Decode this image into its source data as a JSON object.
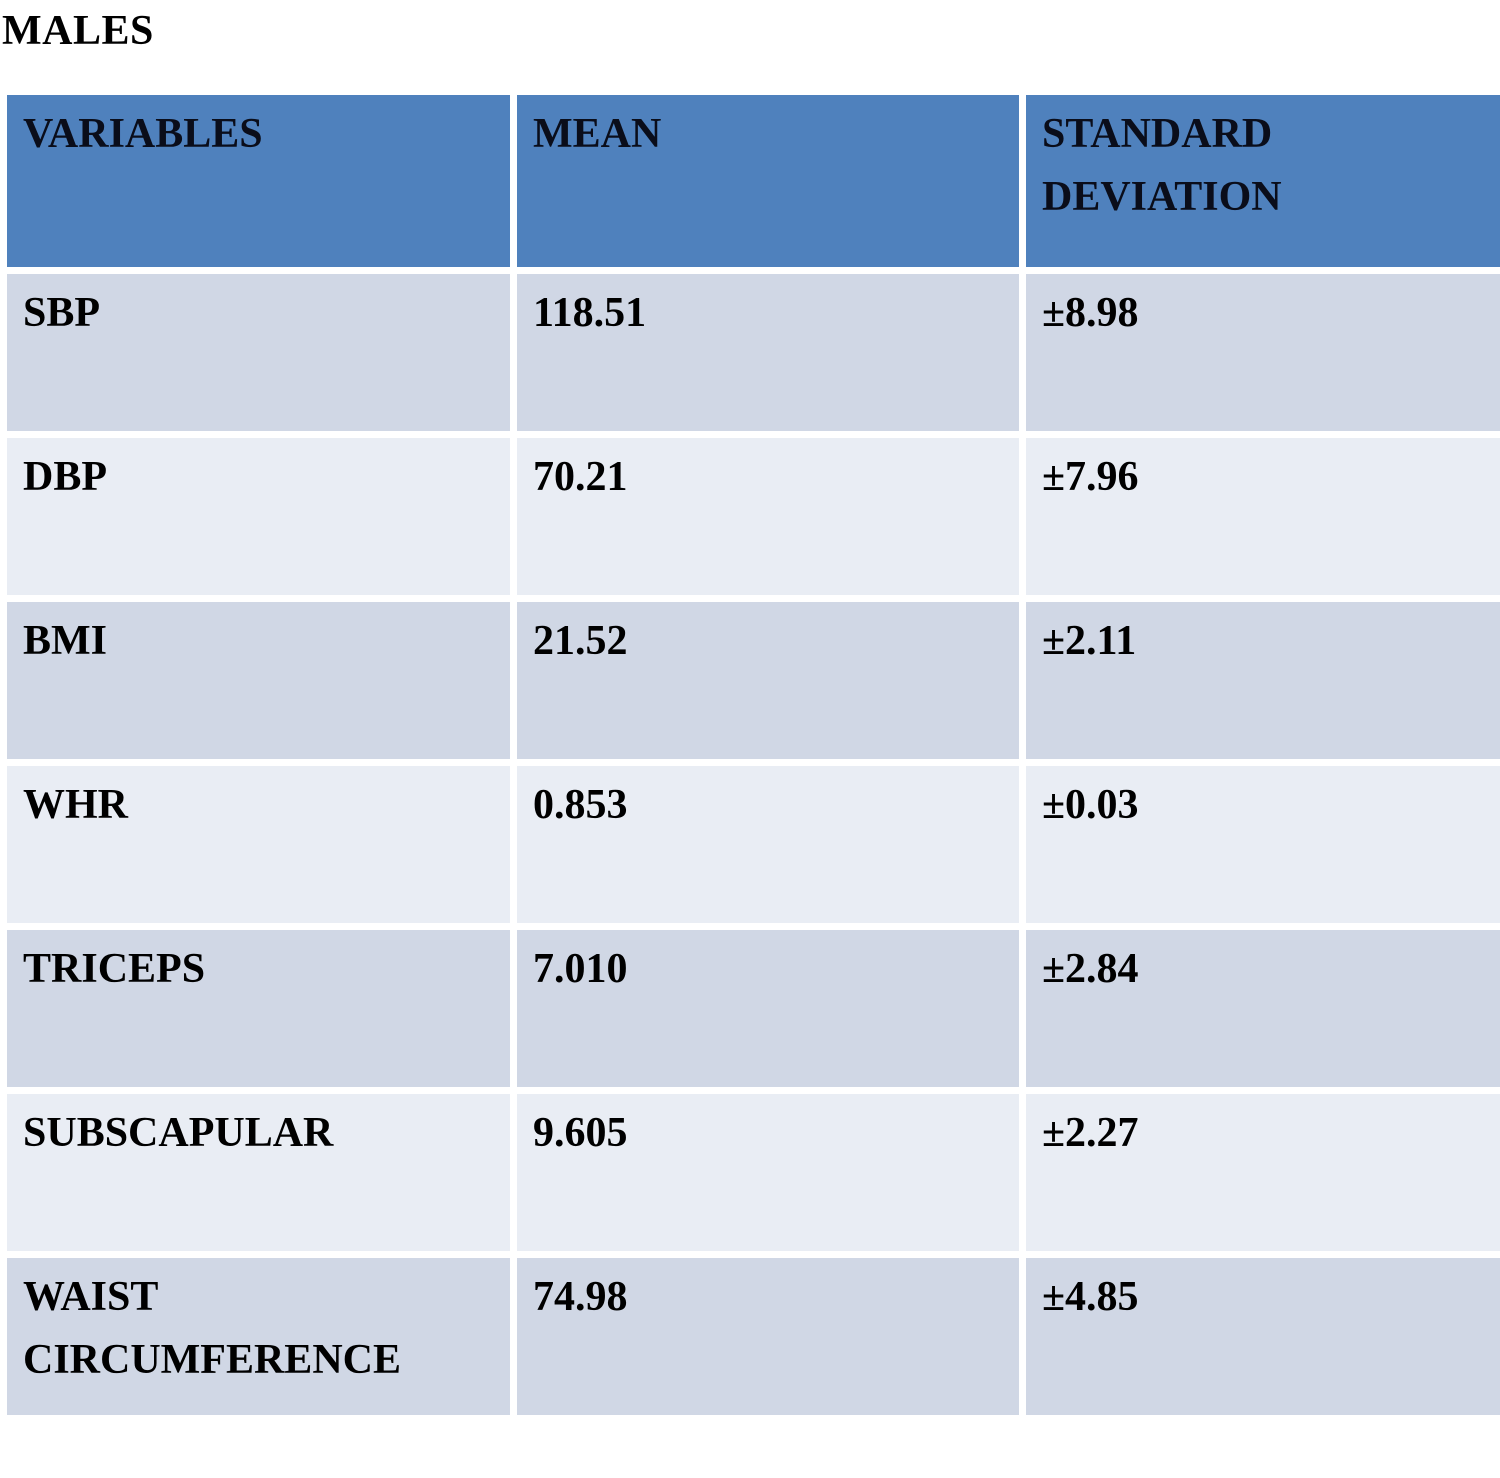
{
  "title": "MALES",
  "table": {
    "columns": [
      "VARIABLES",
      "MEAN",
      "STANDARD DEVIATION"
    ],
    "rows": [
      [
        "SBP",
        "118.51",
        "±8.98"
      ],
      [
        "DBP",
        "70.21",
        "±7.96"
      ],
      [
        "BMI",
        "21.52",
        "±2.11"
      ],
      [
        "WHR",
        "0.853",
        "±0.03"
      ],
      [
        "TRICEPS",
        "7.010",
        "±2.84"
      ],
      [
        "SUBSCAPULAR",
        "9.605",
        "±2.27"
      ],
      [
        "WAIST CIRCUMFERENCE",
        "74.98",
        "±4.85"
      ]
    ]
  },
  "colors": {
    "header_bg": "#4F81BD",
    "row_band_dark": "#D0D7E5",
    "row_band_light": "#E9EDF4",
    "gap": "#FFFFFF",
    "text": "#000000",
    "header_text": "#0A0D1A"
  }
}
